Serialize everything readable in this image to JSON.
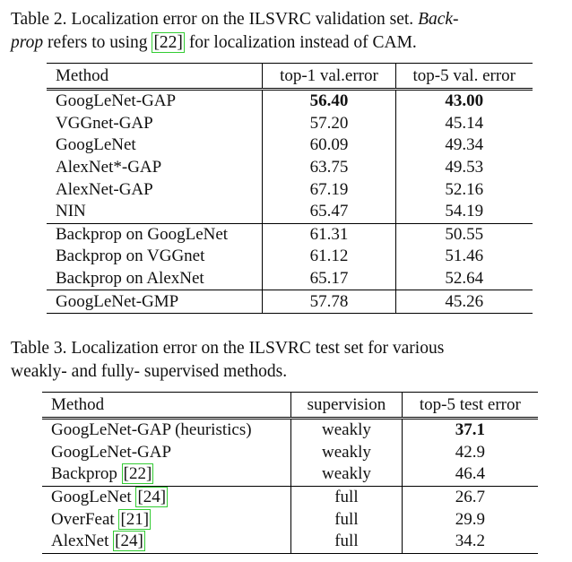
{
  "table2": {
    "caption": [
      "Table 2. Localization error on the ILSVRC validation set. ",
      "Back-",
      "prop",
      " refers to using ",
      "[22]",
      " for localization instead of CAM."
    ],
    "header": [
      "Method",
      "top-1 val.error",
      "top-5 val. error"
    ],
    "groups": [
      [
        [
          "GoogLeNet-GAP",
          "56.40",
          "43.00"
        ],
        [
          "VGGnet-GAP",
          "57.20",
          "45.14"
        ],
        [
          "GoogLeNet",
          "60.09",
          "49.34"
        ],
        [
          "AlexNet*-GAP",
          "63.75",
          "49.53"
        ],
        [
          "AlexNet-GAP",
          "67.19",
          "52.16"
        ],
        [
          "NIN",
          "65.47",
          "54.19"
        ]
      ],
      [
        [
          "Backprop on GoogLeNet",
          "61.31",
          "50.55"
        ],
        [
          "Backprop on VGGnet",
          "61.12",
          "51.46"
        ],
        [
          "Backprop on AlexNet",
          "65.17",
          "52.64"
        ]
      ],
      [
        [
          "GoogLeNet-GMP",
          "57.78",
          "45.26"
        ]
      ]
    ]
  },
  "table3": {
    "caption": [
      "Table 3. Localization error on the ILSVRC test set for various",
      "weakly- and fully- supervised methods."
    ],
    "header": [
      "Method",
      "supervision",
      "top-5 test error"
    ],
    "groups": [
      [
        [
          [
            "GoogLeNet-GAP (heuristics)"
          ],
          "weakly",
          "37.1"
        ],
        [
          [
            "GoogLeNet-GAP"
          ],
          "weakly",
          "42.9"
        ],
        [
          [
            "Backprop ",
            "[22]"
          ],
          "weakly",
          "46.4"
        ]
      ],
      [
        [
          [
            "GoogLeNet ",
            "[24]"
          ],
          "full",
          "26.7"
        ],
        [
          [
            "OverFeat ",
            "[21]"
          ],
          "full",
          "29.9"
        ],
        [
          [
            "AlexNet ",
            "[24]"
          ],
          "full",
          "34.2"
        ]
      ]
    ]
  }
}
